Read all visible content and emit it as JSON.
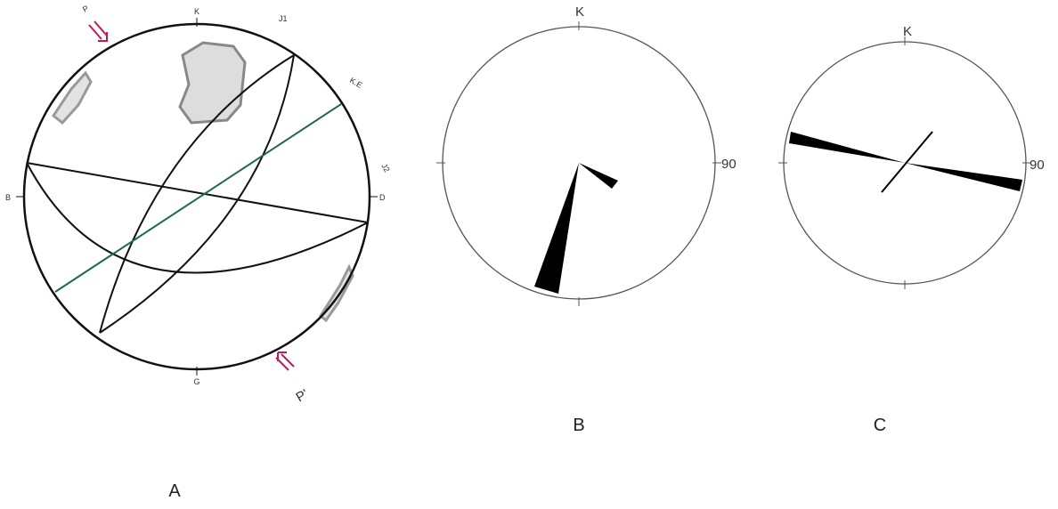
{
  "panels": [
    {
      "label": "A",
      "marks": {
        "p": "P",
        "k": "K",
        "j1": "J1",
        "ke": "K.E",
        "j2": "J2",
        "b": "B",
        "d": "D",
        "g": "G",
        "p_prime": "P'"
      }
    },
    {
      "label": "B",
      "marks": {
        "k": "K",
        "ninety": "90"
      }
    },
    {
      "label": "C",
      "marks": {
        "k": "K",
        "ninety": "90"
      }
    }
  ]
}
